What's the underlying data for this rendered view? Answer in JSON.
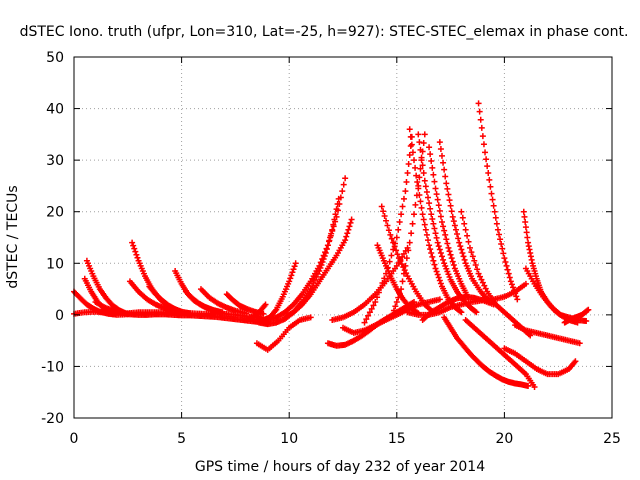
{
  "chart_data": {
    "type": "scatter",
    "title": "dSTEC Iono. truth (ufpr, Lon=310, Lat=-25, h=927): STEC-STEC_elemax in phase cont.",
    "xlabel": "GPS time / hours of day 232 of year 2014",
    "ylabel": "dSTEC  / TECUs",
    "xlim": [
      0,
      25
    ],
    "ylim": [
      -20,
      50
    ],
    "x_ticks": [
      0,
      5,
      10,
      15,
      20,
      25
    ],
    "y_ticks": [
      -20,
      -10,
      0,
      10,
      20,
      30,
      40,
      50
    ],
    "x_tick_labels": [
      "0",
      "5",
      "10",
      "15",
      "20",
      "25"
    ],
    "y_tick_labels": [
      "-20",
      "-10",
      "0",
      "10",
      "20",
      "30",
      "40",
      "50"
    ],
    "grid": true,
    "marker": "plus",
    "series_color": "#ff0000",
    "series": [
      {
        "x": [
          0.0,
          0.3,
          0.6,
          0.9,
          1.2,
          1.6,
          2.0,
          2.5
        ],
        "y": [
          4.5,
          3.2,
          2.0,
          1.2,
          0.6,
          0.2,
          0.0,
          0.1
        ]
      },
      {
        "x": [
          0.0,
          0.5,
          1.0,
          1.5,
          2.0,
          2.5,
          3.0,
          3.5,
          4.0,
          4.5,
          5.0,
          5.5,
          6.0,
          6.5,
          7.0,
          7.5,
          8.0,
          8.5
        ],
        "y": [
          0.2,
          0.5,
          0.6,
          0.4,
          0.3,
          0.3,
          0.5,
          0.5,
          0.5,
          0.4,
          0.3,
          0.3,
          0.2,
          0.3,
          0.2,
          0.0,
          -0.3,
          -0.5
        ]
      },
      {
        "x": [
          0.6,
          0.9,
          1.2,
          1.5,
          1.8,
          2.1,
          2.4
        ],
        "y": [
          10.5,
          7.5,
          5.0,
          3.2,
          1.8,
          0.9,
          0.3
        ]
      },
      {
        "x": [
          0.5,
          0.8,
          1.1,
          1.4,
          1.8
        ],
        "y": [
          7.0,
          4.5,
          2.5,
          1.2,
          0.4
        ]
      },
      {
        "x": [
          1.0,
          1.4,
          1.8,
          2.2,
          2.6,
          3.0,
          3.4,
          3.8,
          4.2,
          4.6,
          5.0,
          5.4,
          5.8,
          6.2,
          6.6,
          7.0,
          7.4,
          7.8,
          8.2,
          8.6,
          9.0
        ],
        "y": [
          2.5,
          1.5,
          0.8,
          0.4,
          0.1,
          0.0,
          0.0,
          0.1,
          0.1,
          0.0,
          -0.1,
          -0.1,
          -0.2,
          -0.3,
          -0.4,
          -0.6,
          -0.8,
          -1.0,
          -1.2,
          -1.4,
          -1.5
        ]
      },
      {
        "x": [
          2.7,
          3.0,
          3.3,
          3.6,
          3.9,
          4.2,
          4.6,
          5.0
        ],
        "y": [
          14.0,
          10.5,
          7.5,
          5.2,
          3.5,
          2.2,
          1.2,
          0.6
        ]
      },
      {
        "x": [
          2.6,
          3.0,
          3.4,
          3.8,
          4.2,
          4.6
        ],
        "y": [
          6.5,
          4.5,
          3.0,
          2.0,
          1.3,
          0.8
        ]
      },
      {
        "x": [
          3.5,
          3.8,
          4.1,
          4.4,
          4.7,
          5.0,
          5.4
        ],
        "y": [
          5.5,
          4.0,
          2.8,
          1.8,
          1.1,
          0.6,
          0.3
        ]
      },
      {
        "x": [
          4.7,
          5.0,
          5.3,
          5.6,
          6.0,
          6.4,
          6.8
        ],
        "y": [
          8.5,
          6.0,
          4.0,
          2.7,
          1.7,
          1.0,
          0.5
        ]
      },
      {
        "x": [
          5.2,
          5.5,
          5.8,
          6.1,
          6.5,
          6.9
        ],
        "y": [
          4.5,
          3.2,
          2.2,
          1.5,
          0.9,
          0.5
        ]
      },
      {
        "x": [
          5.9,
          6.3,
          6.7,
          7.1,
          7.5,
          8.0
        ],
        "y": [
          5.0,
          3.3,
          2.2,
          1.4,
          0.8,
          0.3
        ]
      },
      {
        "x": [
          7.1,
          7.4,
          7.7,
          8.0,
          8.4,
          8.8
        ],
        "y": [
          4.0,
          2.8,
          1.8,
          1.2,
          0.6,
          0.2
        ]
      },
      {
        "x": [
          8.0,
          8.3,
          8.6,
          8.9
        ],
        "y": [
          -1.0,
          -0.5,
          0.5,
          2.0
        ]
      },
      {
        "x": [
          8.5,
          8.8,
          9.1,
          9.4,
          9.7,
          10.0,
          10.3
        ],
        "y": [
          -0.5,
          -1.0,
          -0.5,
          1.0,
          3.5,
          6.5,
          10.0
        ]
      },
      {
        "x": [
          8.6,
          9.0,
          9.4,
          9.8,
          10.2,
          10.6,
          11.0,
          11.4,
          11.7,
          12.0,
          12.3
        ],
        "y": [
          -1.5,
          -1.8,
          -1.5,
          -0.8,
          0.5,
          2.5,
          5.0,
          8.5,
          12.0,
          16.5,
          22.5
        ]
      },
      {
        "x": [
          9.0,
          9.4,
          9.8,
          10.2,
          10.6,
          11.0,
          11.4,
          11.8,
          12.2,
          12.6
        ],
        "y": [
          -1.0,
          -0.5,
          0.5,
          2.0,
          4.0,
          6.5,
          9.5,
          13.5,
          19.0,
          26.5
        ]
      },
      {
        "x": [
          9.8,
          10.2,
          10.6,
          11.0,
          11.4,
          11.8,
          12.2,
          12.6,
          12.9
        ],
        "y": [
          -0.5,
          0.5,
          2.0,
          4.0,
          6.5,
          9.0,
          11.5,
          14.5,
          18.5
        ]
      },
      {
        "x": [
          8.5,
          9.0,
          9.5,
          10.0,
          10.5,
          11.0
        ],
        "y": [
          -5.5,
          -6.8,
          -5.0,
          -2.5,
          -1.0,
          -0.5
        ]
      },
      {
        "x": [
          11.8,
          12.2,
          12.6,
          13.0,
          13.4,
          13.8,
          14.2,
          14.6,
          15.0,
          15.4,
          15.8
        ],
        "y": [
          -5.5,
          -6.0,
          -5.8,
          -5.0,
          -4.0,
          -2.8,
          -1.5,
          -0.5,
          0.5,
          1.5,
          2.5
        ]
      },
      {
        "x": [
          12.5,
          13.0,
          13.5,
          14.0,
          14.5,
          15.0,
          15.5,
          16.0,
          16.5,
          17.0
        ],
        "y": [
          -2.5,
          -3.5,
          -3.0,
          -2.0,
          -1.0,
          0.0,
          1.0,
          2.0,
          2.5,
          3.0
        ]
      },
      {
        "x": [
          12.0,
          12.5,
          13.0,
          13.5,
          14.0,
          14.5,
          15.0,
          15.5
        ],
        "y": [
          -1.0,
          -0.5,
          0.5,
          2.0,
          4.0,
          6.5,
          9.5,
          13.0
        ]
      },
      {
        "x": [
          14.3,
          14.7,
          15.1,
          15.5,
          15.9,
          16.3,
          16.7
        ],
        "y": [
          21.0,
          15.5,
          11.0,
          7.5,
          4.5,
          2.0,
          0.5
        ]
      },
      {
        "x": [
          14.1,
          14.4,
          14.7,
          15.0,
          15.3,
          15.6,
          16.0
        ],
        "y": [
          13.5,
          10.5,
          7.5,
          5.0,
          3.0,
          1.5,
          0.3
        ]
      },
      {
        "x": [
          13.5,
          14.0,
          14.5,
          15.0,
          15.4,
          15.7
        ],
        "y": [
          -1.5,
          2.5,
          8.0,
          15.0,
          24.0,
          34.5
        ]
      },
      {
        "x": [
          15.6,
          15.9,
          16.2,
          16.5,
          16.8,
          17.1,
          17.4,
          17.7,
          18.0
        ],
        "y": [
          36.0,
          27.0,
          19.5,
          13.5,
          9.0,
          5.5,
          3.0,
          1.5,
          0.5
        ]
      },
      {
        "x": [
          14.8,
          15.2,
          15.6,
          16.0,
          16.3
        ],
        "y": [
          0.0,
          5.0,
          14.0,
          25.0,
          35.0
        ]
      },
      {
        "x": [
          16.0,
          16.3,
          16.6,
          16.9,
          17.2,
          17.5,
          17.8,
          18.1,
          18.4,
          18.7
        ],
        "y": [
          35.0,
          26.0,
          19.5,
          14.0,
          10.0,
          6.8,
          4.5,
          2.8,
          1.5,
          0.5
        ]
      },
      {
        "x": [
          16.5,
          16.8,
          17.1,
          17.4,
          17.7,
          18.0,
          18.3
        ],
        "y": [
          32.5,
          24.5,
          18.0,
          13.0,
          9.0,
          6.0,
          3.5
        ]
      },
      {
        "x": [
          17.0,
          17.3,
          17.6,
          17.9,
          18.2,
          18.5,
          18.9,
          19.3
        ],
        "y": [
          33.5,
          25.5,
          19.0,
          14.0,
          10.0,
          7.0,
          4.5,
          2.5
        ]
      },
      {
        "x": [
          16.2,
          16.6,
          17.0,
          17.4,
          17.8,
          18.2,
          18.6,
          19.0,
          19.5
        ],
        "y": [
          -1.0,
          0.5,
          1.5,
          2.5,
          3.2,
          3.5,
          3.3,
          2.8,
          2.0
        ]
      },
      {
        "x": [
          15.5,
          16.0,
          16.5,
          17.0,
          17.5,
          18.0,
          18.5,
          19.0,
          19.5,
          20.0,
          20.5,
          21.0
        ],
        "y": [
          0.5,
          0.0,
          0.0,
          0.5,
          1.5,
          2.0,
          2.5,
          2.8,
          3.0,
          3.5,
          4.5,
          6.0
        ]
      },
      {
        "x": [
          17.2,
          17.5,
          17.8,
          18.1,
          18.4,
          18.7,
          19.0,
          19.3,
          19.6,
          19.9,
          20.2,
          20.5,
          20.8,
          21.1
        ],
        "y": [
          -0.5,
          -2.5,
          -4.5,
          -6.0,
          -7.5,
          -8.8,
          -10.0,
          -11.0,
          -11.8,
          -12.5,
          -13.0,
          -13.3,
          -13.5,
          -13.8
        ]
      },
      {
        "x": [
          18.0,
          18.4,
          18.8,
          19.2,
          19.6,
          20.0,
          20.4,
          20.8,
          21.2
        ],
        "y": [
          20.0,
          13.0,
          8.0,
          4.5,
          2.0,
          0.5,
          -1.0,
          -2.5,
          -4.0
        ]
      },
      {
        "x": [
          18.8,
          19.1,
          19.4,
          19.7,
          20.0,
          20.3,
          20.6
        ],
        "y": [
          41.0,
          31.5,
          23.5,
          16.5,
          11.0,
          6.5,
          3.0
        ]
      },
      {
        "x": [
          18.2,
          18.6,
          19.0,
          19.4,
          19.8,
          20.2,
          20.6,
          21.0,
          21.4
        ],
        "y": [
          -1.0,
          -2.5,
          -4.0,
          -5.5,
          -7.0,
          -8.5,
          -10.0,
          -11.5,
          -14.0
        ]
      },
      {
        "x": [
          20.9,
          21.1,
          21.3,
          21.5,
          21.7,
          22.0,
          22.3,
          22.6,
          23.0,
          23.4,
          23.8
        ],
        "y": [
          20.0,
          14.0,
          10.0,
          7.0,
          4.5,
          2.5,
          1.0,
          0.0,
          -0.5,
          -1.0,
          -1.2
        ]
      },
      {
        "x": [
          21.0,
          21.4,
          21.8,
          22.2,
          22.6,
          23.0,
          23.4
        ],
        "y": [
          9.0,
          6.0,
          3.5,
          1.5,
          0.0,
          -1.0,
          -1.5
        ]
      },
      {
        "x": [
          20.0,
          20.5,
          21.0,
          21.5,
          22.0,
          22.5,
          23.0,
          23.3
        ],
        "y": [
          -6.5,
          -7.5,
          -9.0,
          -10.5,
          -11.5,
          -11.5,
          -10.5,
          -9.0
        ]
      },
      {
        "x": [
          20.5,
          21.0,
          21.5,
          22.0,
          22.5,
          23.0,
          23.5
        ],
        "y": [
          -2.0,
          -3.0,
          -3.5,
          -4.0,
          -4.5,
          -5.0,
          -5.5
        ]
      },
      {
        "x": [
          22.8,
          23.0,
          23.3,
          23.6,
          23.9
        ],
        "y": [
          -1.5,
          -1.0,
          -0.5,
          0.0,
          1.0
        ]
      }
    ]
  }
}
